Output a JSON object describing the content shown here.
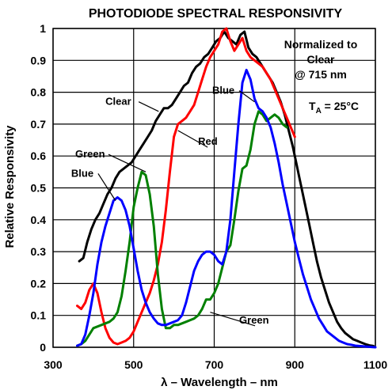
{
  "chart_data": {
    "type": "line",
    "title": "PHOTODIODE SPECTRAL RESPONSIVITY",
    "xlabel": "λ – Wavelength – nm",
    "ylabel": "Relative Responsivity",
    "xlim": [
      300,
      1100
    ],
    "ylim": [
      0,
      1
    ],
    "xticks": [
      300,
      500,
      700,
      900,
      1100
    ],
    "yticks": [
      0,
      0.1,
      0.2,
      0.3,
      0.4,
      0.5,
      0.6,
      0.7,
      0.8,
      0.9,
      1
    ],
    "ytick_labels": [
      "0",
      "0.1",
      "0.2",
      "0.3",
      "0.4",
      "0.5",
      "0.6",
      "0.7",
      "0.8",
      "0.9",
      "1"
    ],
    "grid": true,
    "annotations": {
      "normalized_line1": "Normalized to",
      "normalized_line2": "Clear",
      "normalized_line3": "@ 715 nm",
      "temp_prefix": "T",
      "temp_sub": "A",
      "temp_suffix": " = 25°C"
    },
    "series": [
      {
        "name": "Clear",
        "color": "#000000",
        "label": "Clear",
        "label_at": [
          430,
          0.76
        ],
        "arrow_to": [
          562,
          0.74
        ],
        "x": [
          365,
          375,
          385,
          395,
          405,
          415,
          425,
          435,
          445,
          455,
          465,
          475,
          485,
          495,
          505,
          515,
          525,
          535,
          545,
          555,
          565,
          575,
          585,
          595,
          605,
          615,
          625,
          635,
          645,
          655,
          665,
          675,
          685,
          695,
          705,
          715,
          725,
          735,
          745,
          755,
          765,
          775,
          785,
          795,
          805,
          815,
          825,
          835,
          845,
          855,
          865,
          875,
          885,
          895,
          905,
          915,
          925,
          935,
          945,
          955,
          965,
          975,
          985,
          995,
          1005,
          1015,
          1025,
          1035,
          1045,
          1055,
          1065,
          1075,
          1085,
          1095
        ],
        "y": [
          0.27,
          0.28,
          0.33,
          0.37,
          0.4,
          0.42,
          0.45,
          0.48,
          0.5,
          0.53,
          0.55,
          0.56,
          0.57,
          0.58,
          0.6,
          0.62,
          0.64,
          0.66,
          0.68,
          0.71,
          0.73,
          0.75,
          0.75,
          0.76,
          0.78,
          0.8,
          0.82,
          0.83,
          0.86,
          0.88,
          0.89,
          0.91,
          0.92,
          0.94,
          0.96,
          0.97,
          0.99,
          0.97,
          0.96,
          0.95,
          0.98,
          0.99,
          0.94,
          0.92,
          0.91,
          0.89,
          0.87,
          0.85,
          0.83,
          0.8,
          0.77,
          0.73,
          0.68,
          0.63,
          0.57,
          0.51,
          0.45,
          0.39,
          0.33,
          0.27,
          0.22,
          0.18,
          0.14,
          0.11,
          0.08,
          0.06,
          0.045,
          0.035,
          0.025,
          0.02,
          0.015,
          0.01,
          0.006,
          0.004
        ]
      },
      {
        "name": "Red",
        "color": "#ff0000",
        "label": "Red",
        "label_at": [
          660,
          0.635
        ],
        "arrow_to": [
          610,
          0.68
        ],
        "x": [
          360,
          370,
          380,
          390,
          400,
          410,
          420,
          430,
          440,
          450,
          460,
          470,
          480,
          490,
          500,
          510,
          520,
          530,
          540,
          550,
          560,
          570,
          580,
          590,
          600,
          610,
          620,
          630,
          640,
          650,
          660,
          670,
          680,
          690,
          700,
          710,
          720,
          730,
          740,
          750,
          760,
          770,
          780,
          790,
          800,
          810,
          820,
          830,
          840,
          850,
          860,
          870,
          880,
          890,
          900
        ],
        "y": [
          0.13,
          0.12,
          0.14,
          0.18,
          0.2,
          0.17,
          0.11,
          0.06,
          0.03,
          0.015,
          0.01,
          0.015,
          0.02,
          0.03,
          0.05,
          0.08,
          0.11,
          0.14,
          0.17,
          0.21,
          0.26,
          0.33,
          0.43,
          0.55,
          0.66,
          0.7,
          0.71,
          0.72,
          0.74,
          0.76,
          0.8,
          0.84,
          0.88,
          0.91,
          0.93,
          0.95,
          0.99,
          1.0,
          0.96,
          0.93,
          0.95,
          0.97,
          0.93,
          0.91,
          0.9,
          0.89,
          0.88,
          0.86,
          0.84,
          0.81,
          0.78,
          0.75,
          0.72,
          0.69,
          0.66
        ]
      },
      {
        "name": "Green",
        "color": "#008000",
        "label": "Green",
        "label_at": [
          355,
          0.595
        ],
        "arrow_to": [
          530,
          0.55
        ],
        "label2": "Green",
        "label2_at": [
          762,
          0.075
        ],
        "arrow2_to": [
          690,
          0.11
        ],
        "x": [
          360,
          370,
          380,
          390,
          400,
          410,
          420,
          430,
          440,
          450,
          460,
          470,
          480,
          490,
          500,
          510,
          520,
          530,
          540,
          550,
          560,
          570,
          580,
          590,
          600,
          610,
          620,
          630,
          640,
          650,
          660,
          670,
          680,
          690,
          700,
          710,
          720,
          730,
          740,
          750,
          760,
          770,
          780,
          790,
          800,
          810,
          820,
          830,
          840,
          850,
          860,
          870,
          880
        ],
        "y": [
          0.005,
          0.01,
          0.02,
          0.04,
          0.06,
          0.065,
          0.07,
          0.075,
          0.08,
          0.09,
          0.11,
          0.16,
          0.24,
          0.33,
          0.44,
          0.5,
          0.55,
          0.54,
          0.48,
          0.38,
          0.23,
          0.12,
          0.06,
          0.06,
          0.07,
          0.07,
          0.075,
          0.08,
          0.085,
          0.09,
          0.1,
          0.12,
          0.15,
          0.15,
          0.17,
          0.2,
          0.25,
          0.3,
          0.32,
          0.4,
          0.49,
          0.56,
          0.57,
          0.62,
          0.7,
          0.74,
          0.73,
          0.71,
          0.72,
          0.73,
          0.72,
          0.7,
          0.69
        ]
      },
      {
        "name": "Blue",
        "color": "#0000ff",
        "label": "Blue",
        "label_at": [
          345,
          0.535
        ],
        "arrow_to": [
          455,
          0.46
        ],
        "label2": "Blue",
        "label2_at": [
          695,
          0.795
        ],
        "arrow2_to": [
          800,
          0.77
        ],
        "x": [
          360,
          370,
          380,
          390,
          400,
          410,
          420,
          430,
          440,
          450,
          460,
          470,
          480,
          490,
          500,
          510,
          520,
          530,
          540,
          550,
          560,
          570,
          580,
          590,
          600,
          610,
          620,
          630,
          640,
          650,
          660,
          670,
          680,
          690,
          700,
          710,
          720,
          730,
          740,
          750,
          760,
          770,
          780,
          790,
          800,
          810,
          820,
          830,
          840,
          850,
          860,
          870,
          880,
          890,
          900,
          910,
          920,
          930,
          940,
          950,
          960,
          970,
          980,
          990,
          1000,
          1010,
          1020,
          1030,
          1040,
          1050,
          1060,
          1070,
          1080,
          1090,
          1100
        ],
        "y": [
          0.005,
          0.01,
          0.04,
          0.1,
          0.17,
          0.26,
          0.33,
          0.38,
          0.42,
          0.46,
          0.47,
          0.46,
          0.43,
          0.38,
          0.31,
          0.24,
          0.18,
          0.14,
          0.11,
          0.09,
          0.075,
          0.07,
          0.07,
          0.075,
          0.08,
          0.085,
          0.1,
          0.14,
          0.19,
          0.24,
          0.27,
          0.29,
          0.3,
          0.3,
          0.29,
          0.27,
          0.26,
          0.3,
          0.4,
          0.55,
          0.7,
          0.83,
          0.87,
          0.84,
          0.78,
          0.75,
          0.74,
          0.72,
          0.69,
          0.64,
          0.58,
          0.51,
          0.45,
          0.39,
          0.33,
          0.28,
          0.23,
          0.19,
          0.15,
          0.12,
          0.09,
          0.07,
          0.05,
          0.04,
          0.03,
          0.02,
          0.015,
          0.01,
          0.008,
          0.005,
          0.004,
          0.003,
          0.002,
          0.001,
          0.0
        ]
      }
    ]
  }
}
